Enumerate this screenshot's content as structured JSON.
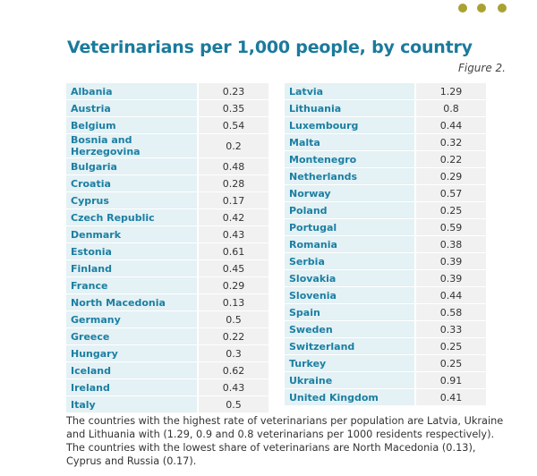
{
  "title": "Veterinarians per 1,000 people, by country",
  "figure_label": "Figure 2.",
  "tables": [
    {
      "rows": [
        [
          "Albania",
          "0.23"
        ],
        [
          "Austria",
          "0.35"
        ],
        [
          "Belgium",
          "0.54"
        ],
        [
          "Bosnia and Herzegovina",
          "0.2"
        ],
        [
          "Bulgaria",
          "0.48"
        ],
        [
          "Croatia",
          "0.28"
        ],
        [
          "Cyprus",
          "0.17"
        ],
        [
          "Czech Republic",
          "0.42"
        ],
        [
          "Denmark",
          "0.43"
        ],
        [
          "Estonia",
          "0.61"
        ],
        [
          "Finland",
          "0.45"
        ],
        [
          "France",
          "0.29"
        ],
        [
          "North Macedonia",
          "0.13"
        ],
        [
          "Germany",
          "0.5"
        ],
        [
          "Greece",
          "0.22"
        ],
        [
          "Hungary",
          "0.3"
        ],
        [
          "Iceland",
          "0.62"
        ],
        [
          "Ireland",
          "0.43"
        ],
        [
          "Italy",
          "0.5"
        ]
      ]
    },
    {
      "rows": [
        [
          "Latvia",
          "1.29"
        ],
        [
          "Lithuania",
          "0.8"
        ],
        [
          "Luxembourg",
          "0.44"
        ],
        [
          "Malta",
          "0.32"
        ],
        [
          "Montenegro",
          "0.22"
        ],
        [
          "Netherlands",
          "0.29"
        ],
        [
          "Norway",
          "0.57"
        ],
        [
          "Poland",
          "0.25"
        ],
        [
          "Portugal",
          "0.59"
        ],
        [
          "Romania",
          "0.38"
        ],
        [
          "Serbia",
          "0.39"
        ],
        [
          "Slovakia",
          "0.39"
        ],
        [
          "Slovenia",
          "0.44"
        ],
        [
          "Spain",
          "0.58"
        ],
        [
          "Sweden",
          "0.33"
        ],
        [
          "Switzerland",
          "0.25"
        ],
        [
          "Turkey",
          "0.25"
        ],
        [
          "Ukraine",
          "0.91"
        ],
        [
          "United Kingdom",
          "0.41"
        ]
      ]
    }
  ],
  "caption_lines": [
    "The countries with the highest rate of veterinarians per population are Latvia, Ukraine",
    "and Lithuania with (1.29, 0.9  and 0.8 veterinarians per 1000 residents respectively).",
    "The countries with the lowest share of veterinarians are North Macedonia (0.13),",
    "Cyprus and Russia  (0.17)."
  ]
}
